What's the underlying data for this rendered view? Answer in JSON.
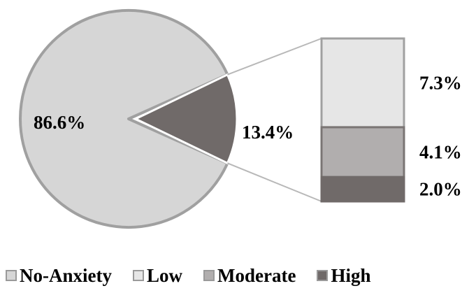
{
  "chart_data": {
    "type": "pie",
    "title": "",
    "pie": {
      "slices": [
        {
          "label": "86.6%",
          "value": 86.6,
          "color": "#d6d6d6"
        },
        {
          "label": "13.4%",
          "value": 13.4,
          "color": "#706a69"
        }
      ]
    },
    "breakdown": {
      "type": "stacked-bar",
      "segments": [
        {
          "name": "Low",
          "label": "7.3%",
          "value": 7.3,
          "color": "#e6e6e6"
        },
        {
          "name": "Moderate",
          "label": "4.1%",
          "value": 4.1,
          "color": "#b1aeae"
        },
        {
          "name": "High",
          "label": "2.0%",
          "value": 2.0,
          "color": "#706a69"
        }
      ]
    },
    "legend": {
      "placement": "bottom",
      "items": [
        {
          "name": "No-Anxiety",
          "color": "#d6d6d6"
        },
        {
          "name": "Low",
          "color": "#e6e6e6"
        },
        {
          "name": "Moderate",
          "color": "#b1aeae"
        },
        {
          "name": "High",
          "color": "#706a69"
        }
      ]
    }
  }
}
